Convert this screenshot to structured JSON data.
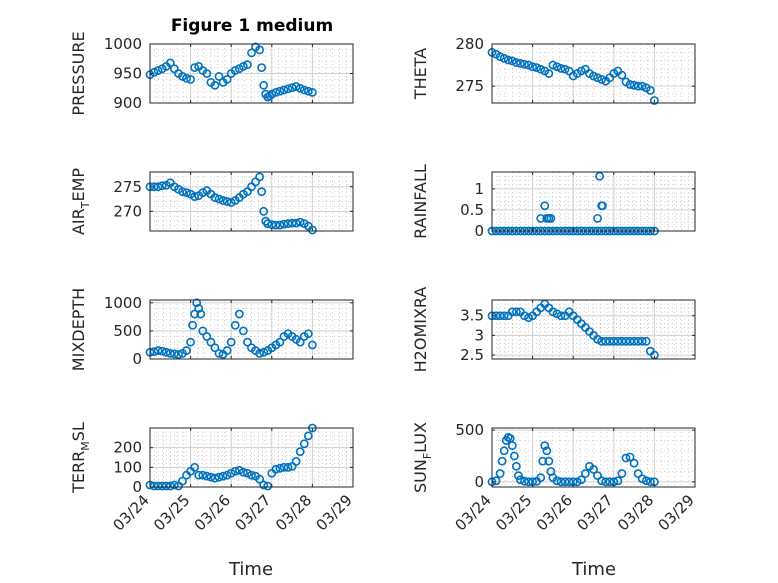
{
  "figure": {
    "title": "Figure 1 medium",
    "xlabel_left": "Time",
    "xlabel_right": "Time"
  },
  "x_tick_labels": [
    "03/24",
    "03/25",
    "03/26",
    "03/27",
    "03/28",
    "03/29"
  ],
  "marker_color": "#0072bd",
  "chart_data": [
    {
      "type": "scatter",
      "ylabel": "PRESSURE",
      "ylim": [
        900,
        1000
      ],
      "yticks": [
        900,
        950,
        1000
      ],
      "xlim": [
        24,
        29
      ],
      "grid": true,
      "x": [
        24.0,
        24.1,
        24.2,
        24.3,
        24.4,
        24.5,
        24.6,
        24.7,
        24.8,
        24.9,
        25.0,
        25.1,
        25.2,
        25.3,
        25.4,
        25.5,
        25.6,
        25.7,
        25.8,
        25.9,
        26.0,
        26.1,
        26.2,
        26.3,
        26.4,
        26.5,
        26.6,
        26.7,
        26.75,
        26.8,
        26.85,
        26.9,
        26.95,
        27.0,
        27.1,
        27.2,
        27.3,
        27.4,
        27.5,
        27.6,
        27.7,
        27.8,
        27.9,
        28.0
      ],
      "y": [
        948,
        952,
        955,
        958,
        962,
        968,
        958,
        950,
        945,
        942,
        940,
        960,
        962,
        955,
        950,
        935,
        930,
        945,
        935,
        940,
        950,
        955,
        958,
        962,
        965,
        985,
        995,
        990,
        960,
        930,
        915,
        910,
        912,
        915,
        918,
        920,
        922,
        924,
        926,
        928,
        925,
        922,
        920,
        918
      ]
    },
    {
      "type": "scatter",
      "ylabel": "THETA",
      "ylim": [
        273,
        280
      ],
      "yticks": [
        275,
        280
      ],
      "xlim": [
        24,
        29
      ],
      "grid": true,
      "x": [
        24.0,
        24.1,
        24.2,
        24.3,
        24.4,
        24.5,
        24.6,
        24.7,
        24.8,
        24.9,
        25.0,
        25.1,
        25.2,
        25.3,
        25.4,
        25.5,
        25.6,
        25.7,
        25.8,
        25.9,
        26.0,
        26.1,
        26.2,
        26.3,
        26.4,
        26.5,
        26.6,
        26.7,
        26.8,
        26.9,
        27.0,
        27.1,
        27.2,
        27.3,
        27.4,
        27.5,
        27.6,
        27.7,
        27.8,
        27.9,
        28.0
      ],
      "y": [
        279,
        278.8,
        278.5,
        278.3,
        278.1,
        278,
        277.8,
        277.7,
        277.6,
        277.5,
        277.3,
        277.2,
        277,
        276.8,
        276.5,
        277.5,
        277.3,
        277.1,
        277,
        276.8,
        276.2,
        276.5,
        276.8,
        277,
        276.5,
        276.2,
        276,
        275.8,
        275.6,
        276,
        276.5,
        276.8,
        276.3,
        275.5,
        275.2,
        275.1,
        275,
        275,
        274.8,
        274.5,
        273.3
      ]
    },
    {
      "type": "scatter",
      "ylabel": "AIR",
      "ylabel_sub": "T",
      "ylabel_suffix": "EMP",
      "ylim": [
        266,
        278
      ],
      "yticks": [
        270,
        275
      ],
      "xlim": [
        24,
        29
      ],
      "grid": true,
      "x": [
        24.0,
        24.1,
        24.2,
        24.3,
        24.4,
        24.5,
        24.6,
        24.7,
        24.8,
        24.9,
        25.0,
        25.1,
        25.2,
        25.3,
        25.4,
        25.5,
        25.6,
        25.7,
        25.8,
        25.9,
        26.0,
        26.1,
        26.2,
        26.3,
        26.4,
        26.5,
        26.6,
        26.7,
        26.75,
        26.8,
        26.85,
        26.9,
        27.0,
        27.1,
        27.2,
        27.3,
        27.4,
        27.5,
        27.6,
        27.7,
        27.8,
        27.9,
        28.0
      ],
      "y": [
        275,
        275,
        275,
        275.2,
        275.3,
        275.8,
        275,
        274.5,
        274,
        273.8,
        273.5,
        273,
        273.2,
        273.8,
        274.2,
        273.5,
        272.8,
        272.5,
        272.2,
        272,
        271.8,
        272.2,
        272.8,
        273.5,
        274,
        275,
        276,
        277,
        274,
        270,
        268,
        267.5,
        267.3,
        267.2,
        267.2,
        267.4,
        267.5,
        267.6,
        267.6,
        267.8,
        267.5,
        267,
        266.2
      ]
    },
    {
      "type": "scatter",
      "ylabel": "RAINFALL",
      "ylim": [
        0,
        1.4
      ],
      "yticks": [
        0,
        0.5,
        1
      ],
      "xlim": [
        24,
        29
      ],
      "grid": true,
      "x": [
        24.0,
        24.1,
        24.2,
        24.3,
        24.4,
        24.5,
        24.6,
        24.7,
        24.8,
        24.9,
        25.0,
        25.1,
        25.2,
        25.3,
        25.4,
        25.5,
        25.6,
        25.7,
        25.8,
        25.9,
        26.0,
        26.1,
        26.2,
        26.3,
        26.4,
        26.5,
        26.6,
        26.7,
        26.8,
        26.9,
        27.0,
        27.1,
        27.2,
        27.3,
        27.4,
        27.5,
        27.6,
        27.7,
        27.8,
        27.9,
        28.0,
        25.2,
        25.3,
        25.35,
        25.4,
        25.45,
        26.6,
        26.65,
        26.7,
        26.72
      ],
      "y": [
        0,
        0,
        0,
        0,
        0,
        0,
        0,
        0,
        0,
        0,
        0,
        0,
        0,
        0,
        0,
        0,
        0,
        0,
        0,
        0,
        0,
        0,
        0,
        0,
        0,
        0,
        0,
        0,
        0,
        0,
        0,
        0,
        0,
        0,
        0,
        0,
        0,
        0,
        0,
        0,
        0,
        0.3,
        0.6,
        0.3,
        0.3,
        0.3,
        0.3,
        1.3,
        0.6,
        0.6
      ]
    },
    {
      "type": "scatter",
      "ylabel": "MIXDEPTH",
      "ylim": [
        0,
        1050
      ],
      "yticks": [
        0,
        500,
        1000
      ],
      "xlim": [
        24,
        29
      ],
      "grid": true,
      "x": [
        24.0,
        24.1,
        24.2,
        24.3,
        24.4,
        24.5,
        24.6,
        24.7,
        24.8,
        24.9,
        25.0,
        25.05,
        25.1,
        25.15,
        25.2,
        25.25,
        25.3,
        25.4,
        25.5,
        25.6,
        25.7,
        25.8,
        25.9,
        26.0,
        26.1,
        26.2,
        26.3,
        26.4,
        26.5,
        26.6,
        26.7,
        26.8,
        26.9,
        27.0,
        27.1,
        27.2,
        27.3,
        27.4,
        27.5,
        27.6,
        27.7,
        27.8,
        27.9,
        28.0
      ],
      "y": [
        120,
        130,
        150,
        140,
        120,
        100,
        90,
        80,
        100,
        150,
        300,
        600,
        800,
        1000,
        900,
        800,
        500,
        400,
        300,
        200,
        100,
        80,
        150,
        300,
        600,
        800,
        500,
        300,
        200,
        150,
        100,
        120,
        150,
        200,
        250,
        300,
        400,
        450,
        400,
        350,
        300,
        400,
        450,
        250
      ]
    },
    {
      "type": "scatter",
      "ylabel": "H2OMIXRA",
      "ylim": [
        2.4,
        3.9
      ],
      "yticks": [
        2.5,
        3,
        3.5
      ],
      "xlim": [
        24,
        29
      ],
      "grid": true,
      "x": [
        24.0,
        24.1,
        24.2,
        24.3,
        24.4,
        24.5,
        24.6,
        24.7,
        24.8,
        24.9,
        25.0,
        25.1,
        25.2,
        25.3,
        25.4,
        25.5,
        25.6,
        25.7,
        25.8,
        25.9,
        26.0,
        26.1,
        26.2,
        26.3,
        26.4,
        26.5,
        26.6,
        26.7,
        26.8,
        26.9,
        27.0,
        27.1,
        27.2,
        27.3,
        27.4,
        27.5,
        27.6,
        27.7,
        27.8,
        27.9,
        28.0
      ],
      "y": [
        3.5,
        3.5,
        3.5,
        3.5,
        3.5,
        3.6,
        3.6,
        3.6,
        3.5,
        3.45,
        3.5,
        3.6,
        3.7,
        3.8,
        3.7,
        3.6,
        3.55,
        3.5,
        3.5,
        3.6,
        3.5,
        3.4,
        3.3,
        3.2,
        3.1,
        3,
        2.9,
        2.85,
        2.85,
        2.85,
        2.85,
        2.85,
        2.85,
        2.85,
        2.85,
        2.85,
        2.85,
        2.85,
        2.85,
        2.6,
        2.5
      ]
    },
    {
      "type": "scatter",
      "ylabel": "TERR",
      "ylabel_sub": "M",
      "ylabel_suffix": "SL",
      "ylim": [
        0,
        300
      ],
      "yticks": [
        0,
        100,
        200
      ],
      "xlim": [
        24,
        29
      ],
      "grid": true,
      "x": [
        24.0,
        24.1,
        24.2,
        24.3,
        24.4,
        24.5,
        24.6,
        24.7,
        24.8,
        24.9,
        25.0,
        25.1,
        25.2,
        25.3,
        25.4,
        25.5,
        25.6,
        25.7,
        25.8,
        25.9,
        26.0,
        26.1,
        26.2,
        26.3,
        26.4,
        26.5,
        26.6,
        26.7,
        26.8,
        26.9,
        27.0,
        27.1,
        27.2,
        27.3,
        27.4,
        27.5,
        27.6,
        27.7,
        27.8,
        27.9,
        28.0
      ],
      "y": [
        10,
        5,
        5,
        5,
        5,
        5,
        10,
        5,
        30,
        60,
        80,
        100,
        60,
        60,
        55,
        50,
        45,
        50,
        55,
        60,
        70,
        80,
        85,
        75,
        70,
        60,
        55,
        40,
        10,
        5,
        70,
        90,
        95,
        100,
        100,
        105,
        130,
        180,
        220,
        260,
        300
      ]
    },
    {
      "type": "scatter",
      "ylabel": "SUN",
      "ylabel_sub": "F",
      "ylabel_suffix": "LUX",
      "ylim": [
        -50,
        520
      ],
      "yticks": [
        0,
        500
      ],
      "xlim": [
        24,
        29
      ],
      "grid": true,
      "x": [
        24.0,
        24.1,
        24.2,
        24.25,
        24.3,
        24.35,
        24.4,
        24.45,
        24.5,
        24.55,
        24.6,
        24.65,
        24.7,
        24.8,
        24.9,
        25.0,
        25.1,
        25.2,
        25.25,
        25.3,
        25.35,
        25.4,
        25.45,
        25.5,
        25.6,
        25.7,
        25.8,
        25.9,
        26.0,
        26.1,
        26.2,
        26.3,
        26.4,
        26.5,
        26.6,
        26.7,
        26.8,
        26.9,
        27.0,
        27.1,
        27.2,
        27.3,
        27.4,
        27.5,
        27.6,
        27.7,
        27.8,
        27.9,
        28.0
      ],
      "y": [
        0,
        10,
        80,
        200,
        300,
        400,
        430,
        420,
        350,
        250,
        150,
        60,
        20,
        5,
        0,
        0,
        5,
        40,
        200,
        350,
        300,
        200,
        100,
        40,
        10,
        0,
        0,
        0,
        0,
        0,
        20,
        80,
        150,
        120,
        60,
        10,
        0,
        0,
        0,
        10,
        80,
        230,
        240,
        180,
        80,
        30,
        10,
        0,
        0
      ]
    }
  ]
}
